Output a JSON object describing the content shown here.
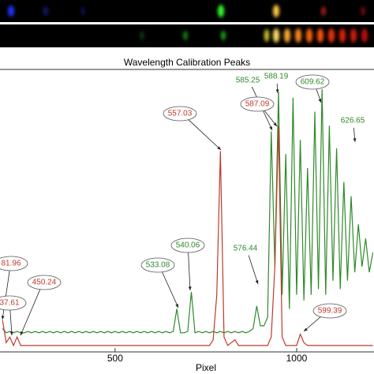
{
  "chart_data": {
    "type": "line",
    "title": "Wavelength Calibration Peaks",
    "xlabel": "Pixel",
    "x": [
      190,
      200,
      210,
      220,
      230,
      240,
      250,
      260,
      270,
      280,
      290,
      300,
      310,
      320,
      330,
      340,
      350,
      360,
      370,
      380,
      390,
      400,
      410,
      420,
      430,
      440,
      450,
      460,
      470,
      480,
      490,
      500,
      510,
      520,
      530,
      540,
      550,
      560,
      570,
      580,
      590,
      600,
      610,
      620,
      630,
      640,
      650,
      660,
      670,
      680,
      690,
      700,
      710,
      720,
      730,
      740,
      750,
      760,
      770,
      780,
      790,
      800,
      810,
      820,
      830,
      840,
      850,
      860,
      870,
      880,
      890,
      900,
      910,
      920,
      930,
      940,
      950,
      960,
      970,
      980,
      990,
      1000,
      1010,
      1020,
      1030,
      1040,
      1050,
      1060,
      1070,
      1080,
      1090,
      1100,
      1110,
      1120,
      1130,
      1140,
      1150,
      1160,
      1170,
      1180,
      1190,
      1200,
      1210
    ],
    "series": [
      {
        "color": "#2f8a2a",
        "values": [
          8,
          6.5,
          7,
          6.5,
          7,
          6.5,
          6.5,
          7,
          6.5,
          7,
          6.5,
          7,
          6.5,
          7,
          6.5,
          7,
          6.5,
          7,
          6.5,
          7,
          6.5,
          7,
          6.5,
          7,
          6.5,
          7,
          6.5,
          7,
          6.5,
          7,
          6.5,
          7,
          6.5,
          7,
          6.5,
          7,
          6.5,
          7,
          6.5,
          7,
          6.5,
          7,
          6.5,
          7,
          6.5,
          7,
          6.5,
          7,
          15,
          6.5,
          6.5,
          7,
          21,
          6.5,
          7,
          6.5,
          7,
          6.5,
          7,
          6.5,
          7,
          6.5,
          7,
          6.5,
          7,
          6.5,
          7,
          6.5,
          7,
          8,
          16,
          9,
          9,
          12,
          78,
          30,
          92,
          20,
          70,
          15,
          90,
          20,
          75,
          18,
          65,
          20,
          85,
          22,
          93,
          20,
          80,
          25,
          72,
          22,
          60,
          25,
          55,
          28,
          45,
          30,
          40,
          28,
          35
        ]
      },
      {
        "color": "#c0392b",
        "values": [
          11,
          3,
          5,
          2,
          5,
          2,
          2,
          2,
          2,
          2,
          2,
          2,
          2,
          2,
          2,
          2,
          2,
          2,
          2,
          2,
          2,
          2,
          2,
          2,
          2,
          2,
          2,
          2,
          2,
          2,
          2,
          2,
          2,
          2,
          2,
          2,
          2,
          2,
          2,
          2,
          2,
          2,
          2,
          2,
          2,
          2,
          2,
          2,
          2,
          2,
          2,
          2,
          2,
          2,
          2,
          2,
          2,
          2,
          4,
          20,
          71,
          5,
          2,
          3,
          4,
          2,
          2,
          2,
          2,
          2,
          2,
          2,
          2,
          2,
          5,
          30,
          80,
          5,
          2,
          2,
          2,
          2,
          6,
          3,
          2,
          2,
          2,
          2,
          2,
          2,
          2,
          2,
          2,
          2,
          2,
          2,
          2,
          2,
          2,
          2,
          2,
          2,
          2
        ]
      }
    ],
    "xlim": [
      183,
      1213
    ],
    "ylim": [
      0,
      100
    ],
    "xticks": [
      500,
      1000
    ],
    "annotations": [
      {
        "text": "81.96",
        "color": "#c0392b"
      },
      {
        "text": "37.61",
        "color": "#c0392b"
      },
      {
        "text": "450.24",
        "color": "#c0392b"
      },
      {
        "text": "533.08",
        "color": "#2f8a2a"
      },
      {
        "text": "540.06",
        "color": "#2f8a2a"
      },
      {
        "text": "557.03",
        "color": "#c0392b"
      },
      {
        "text": "576.44",
        "color": "#2f8a2a"
      },
      {
        "text": "585.25",
        "color": "#2f8a2a"
      },
      {
        "text": "588.19",
        "color": "#2f8a2a"
      },
      {
        "text": "587.09",
        "color": "#c0392b"
      },
      {
        "text": "609.62",
        "color": "#2f8a2a"
      },
      {
        "text": "626.65",
        "color": "#2f8a2a"
      },
      {
        "text": "599.39",
        "color": "#c0392b"
      }
    ]
  }
}
